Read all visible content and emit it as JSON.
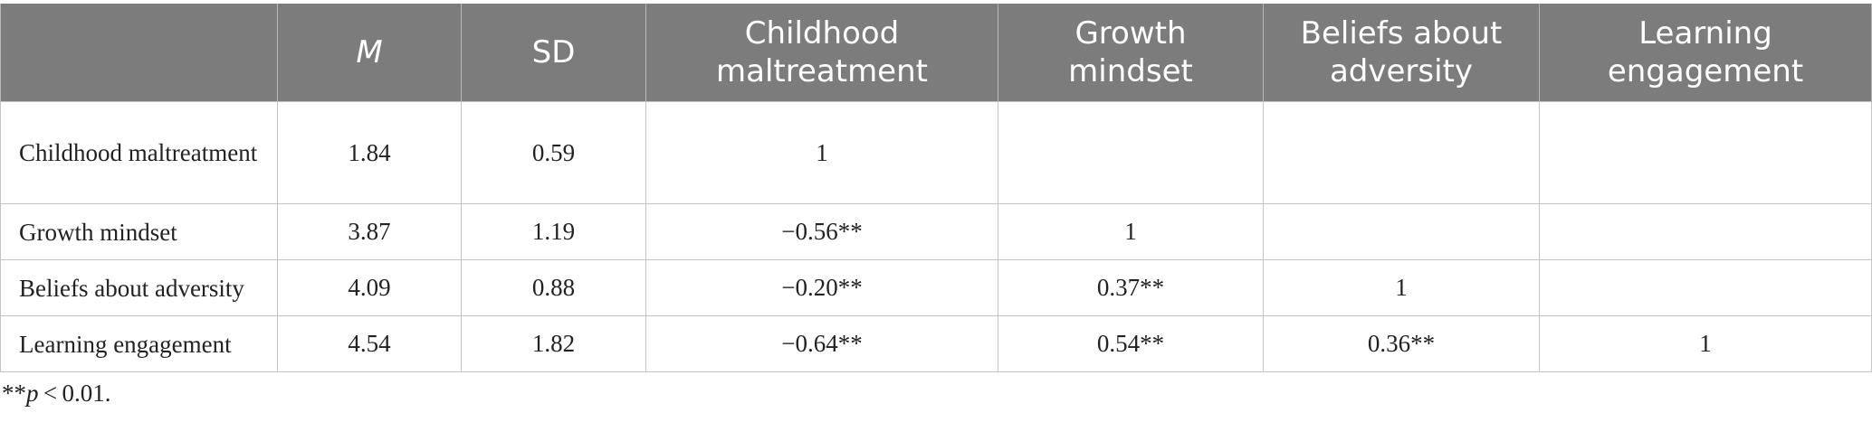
{
  "table": {
    "columns": [
      "",
      "M",
      "SD",
      "Childhood maltreatment",
      "Growth mindset",
      "Beliefs about adversity",
      "Learning engagement"
    ],
    "rows": [
      {
        "label": "Childhood maltreatment",
        "cells": [
          "1.84",
          "0.59",
          "1",
          "",
          "",
          ""
        ]
      },
      {
        "label": "Growth mindset",
        "cells": [
          "3.87",
          "1.19",
          "−0.56**",
          "1",
          "",
          ""
        ]
      },
      {
        "label": "Beliefs about adversity",
        "cells": [
          "4.09",
          "0.88",
          "−0.20**",
          "0.37**",
          "1",
          ""
        ]
      },
      {
        "label": "Learning engagement",
        "cells": [
          "4.54",
          "1.82",
          "−0.64**",
          "0.54**",
          "0.36**",
          "1"
        ]
      }
    ]
  },
  "footnote": {
    "stars": "**",
    "p": "p",
    "rest": " < 0.01."
  },
  "colors": {
    "header_bg": "#7b7c7b",
    "header_text": "#ffffff",
    "border": "#c4c4c4"
  }
}
